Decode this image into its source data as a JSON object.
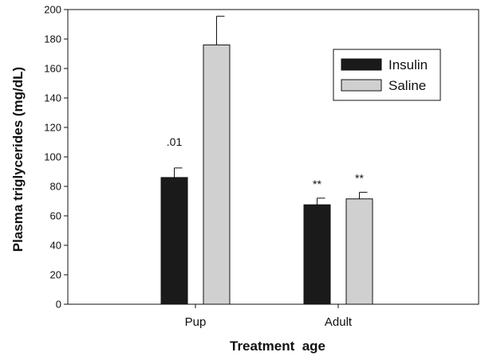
{
  "chart_data": {
    "type": "bar",
    "title": "",
    "xlabel": "Treatment  age",
    "ylabel": "Plasma triglycerides (mg/dL)",
    "ylim": [
      0,
      200
    ],
    "yticks": [
      0,
      20,
      40,
      60,
      80,
      100,
      120,
      140,
      160,
      180,
      200
    ],
    "categories": [
      "Pup",
      "Adult"
    ],
    "series": [
      {
        "name": "Insulin",
        "values": [
          86,
          67.5
        ],
        "errors": [
          6.5,
          4.5
        ],
        "color": "#1a1a1a"
      },
      {
        "name": "Saline",
        "values": [
          176,
          71.5
        ],
        "errors": [
          19.5,
          4.5
        ],
        "color": "#d0d0d0"
      }
    ],
    "annotations": [
      {
        "category": "Pup",
        "series": "Insulin",
        "text": ".01"
      },
      {
        "category": "Adult",
        "series": "Insulin",
        "text": "**"
      },
      {
        "category": "Adult",
        "series": "Saline",
        "text": "**"
      }
    ],
    "grid": false,
    "legend_position": "top-right"
  }
}
